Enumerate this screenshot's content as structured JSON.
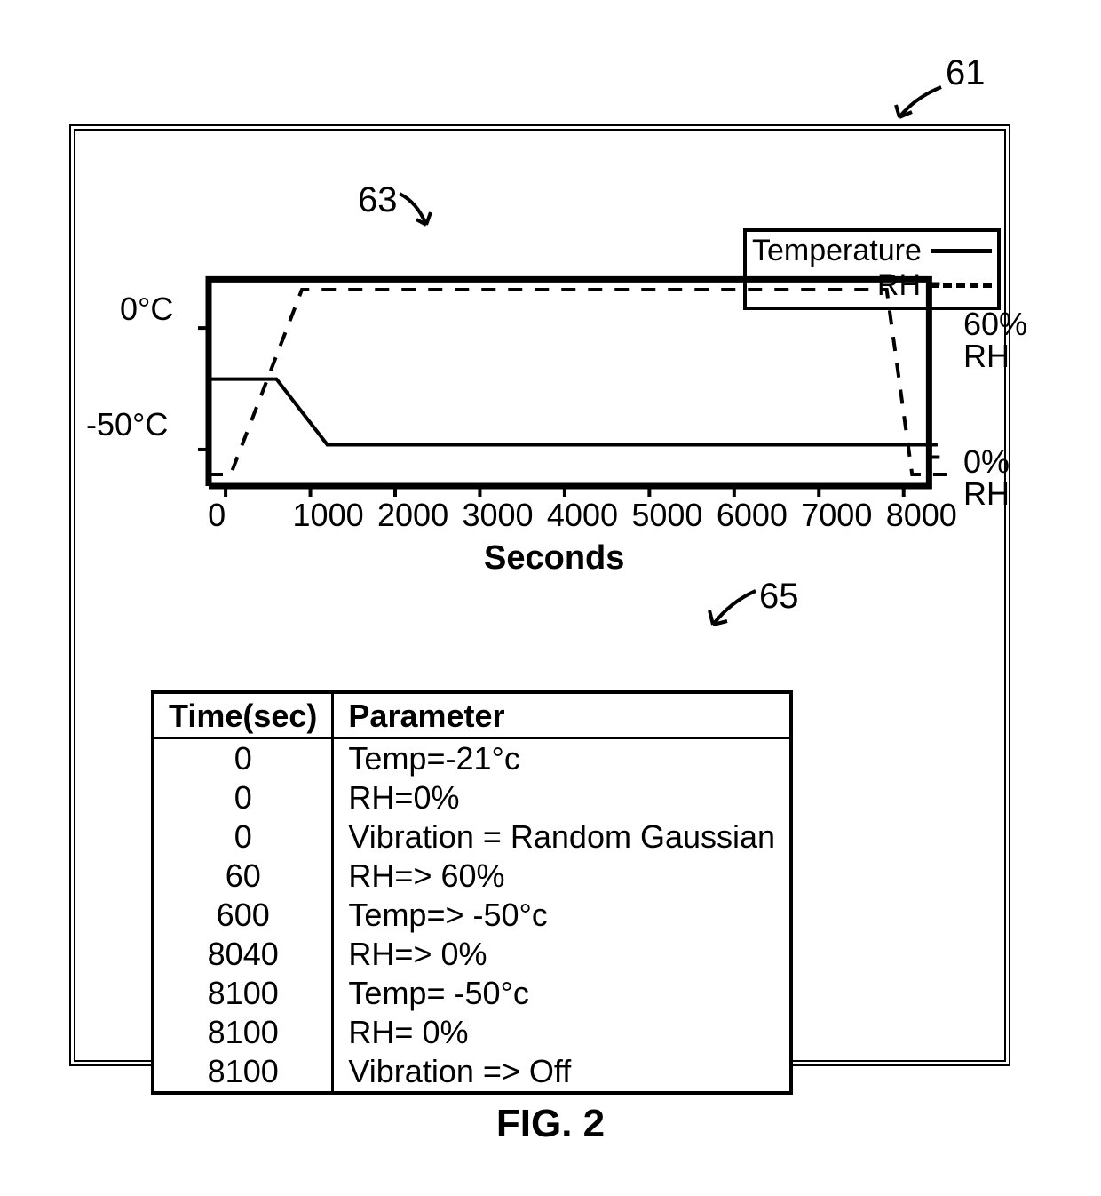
{
  "figure_label": "FIG. 2",
  "callouts": {
    "frame": "61",
    "chart": "63",
    "table": "65"
  },
  "chart": {
    "type": "line",
    "x_axis": {
      "label": "Seconds",
      "min": -200,
      "max": 8600,
      "ticks": [
        0,
        1000,
        2000,
        3000,
        4000,
        5000,
        6000,
        7000,
        8000
      ],
      "tick_labels": [
        "0",
        "1000",
        "2000",
        "3000",
        "4000",
        "5000",
        "6000",
        "7000",
        "8000"
      ]
    },
    "y_left": {
      "label_ticks": [
        {
          "y": 0,
          "label": "0°C"
        },
        {
          "y": -50,
          "label": "-50°C"
        }
      ],
      "min": -65,
      "max": 30
    },
    "y_right": {
      "label_ticks": [
        {
          "y": 60,
          "label": "60%",
          "sub": "RH"
        },
        {
          "y": 0,
          "label": "0%",
          "sub": "RH"
        }
      ],
      "min": -10,
      "max": 70
    },
    "legend": [
      {
        "label": "Temperature",
        "style": "solid"
      },
      {
        "label": "RH",
        "style": "dashed"
      }
    ],
    "series_temperature": {
      "style": "solid",
      "width": 4,
      "color": "#000000",
      "points": [
        [
          -200,
          -21
        ],
        [
          600,
          -21
        ],
        [
          1200,
          -48
        ],
        [
          8400,
          -48
        ]
      ]
    },
    "series_rh": {
      "style": "dashed",
      "width": 4,
      "color": "#000000",
      "points": [
        [
          -200,
          -6
        ],
        [
          60,
          -6
        ],
        [
          900,
          58
        ],
        [
          7800,
          58
        ],
        [
          8100,
          -6
        ],
        [
          8600,
          -6
        ]
      ]
    },
    "frame_line": {
      "style": "solid",
      "width": 7,
      "color": "#000000",
      "pts": [
        [
          -200,
          -65
        ],
        [
          -200,
          20
        ],
        [
          8300,
          20
        ],
        [
          8300,
          -65
        ],
        [
          -200,
          -65
        ]
      ]
    },
    "background_color": "#ffffff"
  },
  "table": {
    "columns": [
      "Time(sec)",
      "Parameter"
    ],
    "rows": [
      [
        "0",
        "Temp=-21°c"
      ],
      [
        "0",
        "RH=0%"
      ],
      [
        "0",
        "Vibration = Random Gaussian"
      ],
      [
        "60",
        "RH=> 60%"
      ],
      [
        "600",
        "Temp=> -50°c"
      ],
      [
        "8040",
        "RH=> 0%"
      ],
      [
        "8100",
        "Temp= -50°c"
      ],
      [
        "8100",
        "RH= 0%"
      ],
      [
        "8100",
        "Vibration => Off"
      ]
    ]
  }
}
